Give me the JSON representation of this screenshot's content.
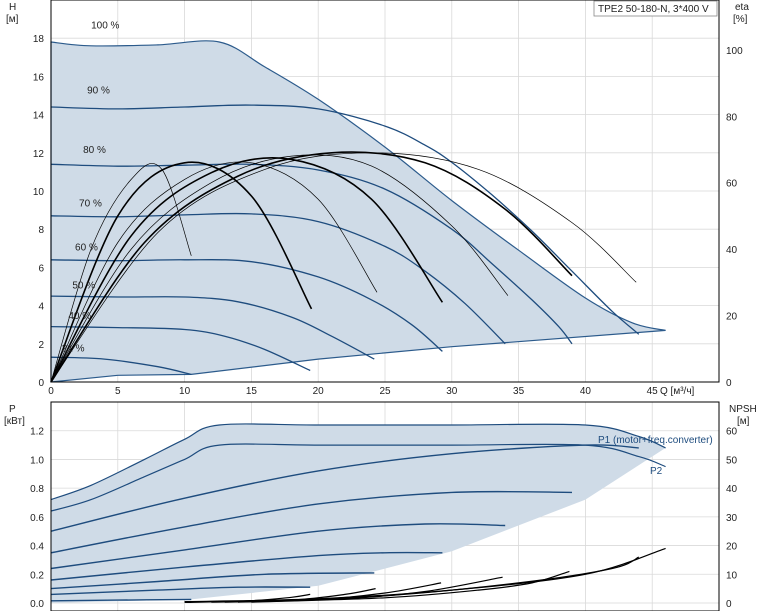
{
  "chart_data": [
    {
      "type": "line",
      "name": "head_chart",
      "title": "TPE2 50-180-N, 3*400 V",
      "ylabel": "H",
      "yunit": "[м]",
      "y2label": "eta",
      "y2unit": "[%]",
      "xlabel": "Q [м³/ч]",
      "xlim": [
        0,
        50
      ],
      "ylim": [
        0,
        20
      ],
      "y2lim": [
        0,
        115
      ],
      "x_ticks": [
        "0",
        "5",
        "10",
        "15",
        "20",
        "25",
        "30",
        "35",
        "40",
        "45"
      ],
      "y_ticks": [
        "0",
        "2",
        "4",
        "6",
        "8",
        "10",
        "12",
        "14",
        "16",
        "18"
      ],
      "y2_ticks": [
        "0",
        "20",
        "40",
        "60",
        "80",
        "100"
      ],
      "grid": true,
      "series": [
        {
          "name": "100 %",
          "x": [
            0,
            3,
            8,
            12.6,
            16,
            20,
            25,
            30,
            35,
            40,
            43.5,
            46
          ],
          "y": [
            17.8,
            17.6,
            17.65,
            17.8,
            16.5,
            14.8,
            12.3,
            9.5,
            6.9,
            4.4,
            3.1,
            2.7
          ]
        },
        {
          "name": "90 %",
          "x": [
            0,
            5,
            10,
            15,
            20,
            25,
            28,
            30,
            33,
            36,
            39,
            42,
            44
          ],
          "y": [
            14.4,
            14.3,
            14.4,
            14.5,
            14.3,
            13.4,
            12.4,
            11.5,
            9.8,
            7.9,
            5.8,
            3.7,
            2.5
          ]
        },
        {
          "name": "80 %",
          "x": [
            0,
            5,
            10,
            15,
            20,
            25,
            30,
            33,
            36,
            38,
            39
          ],
          "y": [
            11.4,
            11.3,
            11.35,
            11.4,
            11.1,
            10.1,
            8.0,
            6.2,
            4.3,
            2.9,
            2.0
          ]
        },
        {
          "name": "70 %",
          "x": [
            0,
            5,
            10,
            15,
            20,
            25,
            28,
            31,
            34
          ],
          "y": [
            8.7,
            8.65,
            8.75,
            8.8,
            8.4,
            7.1,
            5.8,
            4.1,
            2.0
          ]
        },
        {
          "name": "60 %",
          "x": [
            0,
            5,
            10,
            15,
            20,
            24,
            27,
            29.3
          ],
          "y": [
            6.4,
            6.35,
            6.4,
            6.3,
            5.5,
            4.3,
            3.0,
            1.6
          ]
        },
        {
          "name": "50 %",
          "x": [
            0,
            5,
            10,
            14,
            18,
            21,
            24.2
          ],
          "y": [
            4.5,
            4.45,
            4.45,
            4.2,
            3.4,
            2.4,
            1.2
          ]
        },
        {
          "name": "40 %",
          "x": [
            0,
            5,
            10,
            13,
            16,
            19.4
          ],
          "y": [
            2.9,
            2.85,
            2.75,
            2.4,
            1.7,
            0.6
          ]
        },
        {
          "name": "21 %",
          "x": [
            0,
            4,
            8,
            10.5
          ],
          "y": [
            1.3,
            1.2,
            0.8,
            0.4
          ]
        }
      ],
      "eta_series": [
        {
          "x": [
            0,
            3,
            6,
            8.3,
            10.5
          ],
          "y": [
            0,
            40,
            61,
            64,
            38
          ]
        },
        {
          "x": [
            0,
            5,
            10,
            15,
            19.5
          ],
          "y": [
            0,
            50,
            66,
            56,
            22
          ]
        },
        {
          "x": [
            0,
            5,
            10,
            15,
            20,
            24.4
          ],
          "y": [
            0,
            42,
            61,
            66,
            55,
            27
          ]
        },
        {
          "x": [
            0,
            6,
            12,
            18,
            24,
            29.3
          ],
          "y": [
            0,
            44,
            63,
            67,
            55,
            24
          ]
        },
        {
          "x": [
            0,
            6,
            12,
            18,
            24,
            30,
            34.2
          ],
          "y": [
            0,
            40,
            60,
            68,
            65,
            47,
            26
          ]
        },
        {
          "x": [
            0,
            7,
            14,
            21,
            28,
            34,
            39
          ],
          "y": [
            0,
            42,
            62,
            69,
            66,
            52,
            32
          ]
        },
        {
          "x": [
            0,
            8,
            16,
            24,
            32,
            39,
            43.8
          ],
          "y": [
            0,
            45,
            64,
            69,
            64,
            48,
            30
          ]
        }
      ]
    },
    {
      "type": "line",
      "name": "power_npsh_chart",
      "ylabel": "P",
      "yunit": "[кВт]",
      "y2label": "NPSH",
      "y2unit": "[м]",
      "ylim": [
        0,
        1.4
      ],
      "y2lim": [
        0,
        70
      ],
      "y_ticks": [
        "0.0",
        "0.2",
        "0.4",
        "0.6",
        "0.8",
        "1.0",
        "1.2"
      ],
      "y2_ticks": [
        "0",
        "10",
        "20",
        "30",
        "40",
        "50",
        "60"
      ],
      "grid": true,
      "legend": [
        "P1 (motor+freq.converter)",
        "P2"
      ],
      "series": [
        {
          "name": "P1",
          "x": [
            0,
            3,
            7,
            10,
            12.6,
            20,
            30,
            40,
            44,
            46
          ],
          "y": [
            0.72,
            0.82,
            1.0,
            1.14,
            1.24,
            1.24,
            1.24,
            1.24,
            1.16,
            1.08
          ]
        },
        {
          "name": "P2",
          "x": [
            0,
            3,
            7,
            10,
            12.6,
            20,
            30,
            40,
            44,
            46
          ],
          "y": [
            0.64,
            0.72,
            0.88,
            1.0,
            1.1,
            1.1,
            1.1,
            1.1,
            1.02,
            0.95
          ]
        },
        {
          "name": "90 %",
          "x": [
            0,
            10,
            20,
            30,
            40,
            44
          ],
          "y": [
            0.5,
            0.73,
            0.92,
            1.04,
            1.1,
            1.08
          ]
        },
        {
          "name": "80 %",
          "x": [
            0,
            10,
            20,
            30,
            39
          ],
          "y": [
            0.35,
            0.53,
            0.69,
            0.77,
            0.77
          ]
        },
        {
          "name": "70 %",
          "x": [
            0,
            10,
            20,
            28,
            34
          ],
          "y": [
            0.24,
            0.37,
            0.5,
            0.55,
            0.54
          ]
        },
        {
          "name": "60 %",
          "x": [
            0,
            10,
            20,
            25,
            29.3
          ],
          "y": [
            0.16,
            0.25,
            0.33,
            0.35,
            0.35
          ]
        },
        {
          "name": "50 %",
          "x": [
            0,
            8,
            16,
            24.2
          ],
          "y": [
            0.1,
            0.15,
            0.2,
            0.21
          ]
        },
        {
          "name": "40 %",
          "x": [
            0,
            8,
            14,
            19.4
          ],
          "y": [
            0.06,
            0.09,
            0.11,
            0.11
          ]
        },
        {
          "name": "21 %",
          "x": [
            0,
            5,
            10.5
          ],
          "y": [
            0.015,
            0.02,
            0.025
          ]
        }
      ],
      "npsh_series": [
        {
          "x": [
            10,
            20,
            30,
            40,
            46
          ],
          "y": [
            0.5,
            1.5,
            4.5,
            10,
            19
          ]
        },
        {
          "x": [
            15,
            25,
            35,
            42,
            44
          ],
          "y": [
            0.5,
            2.5,
            7,
            12,
            16
          ]
        },
        {
          "x": [
            15,
            25,
            32,
            36,
            38.8
          ],
          "y": [
            0.3,
            1.8,
            4.5,
            7,
            11
          ]
        },
        {
          "x": [
            14,
            22,
            28,
            33.8
          ],
          "y": [
            0.3,
            1.5,
            4,
            9
          ]
        },
        {
          "x": [
            13,
            20,
            25,
            29.2
          ],
          "y": [
            0.3,
            1.2,
            3.5,
            7
          ]
        },
        {
          "x": [
            12,
            18,
            22,
            24.3
          ],
          "y": [
            0.3,
            1.0,
            3,
            5
          ]
        },
        {
          "x": [
            10,
            15,
            18,
            19.4
          ],
          "y": [
            0.2,
            0.8,
            2,
            3
          ]
        }
      ]
    }
  ],
  "colors": {
    "envelope_fill": "#cfdbe7",
    "envelope_edge": "#2c5b8c",
    "curve": "#1e4c7e",
    "eta": "#000000",
    "grid": "#d9d9d9",
    "light_region": "#e8f2fb"
  }
}
